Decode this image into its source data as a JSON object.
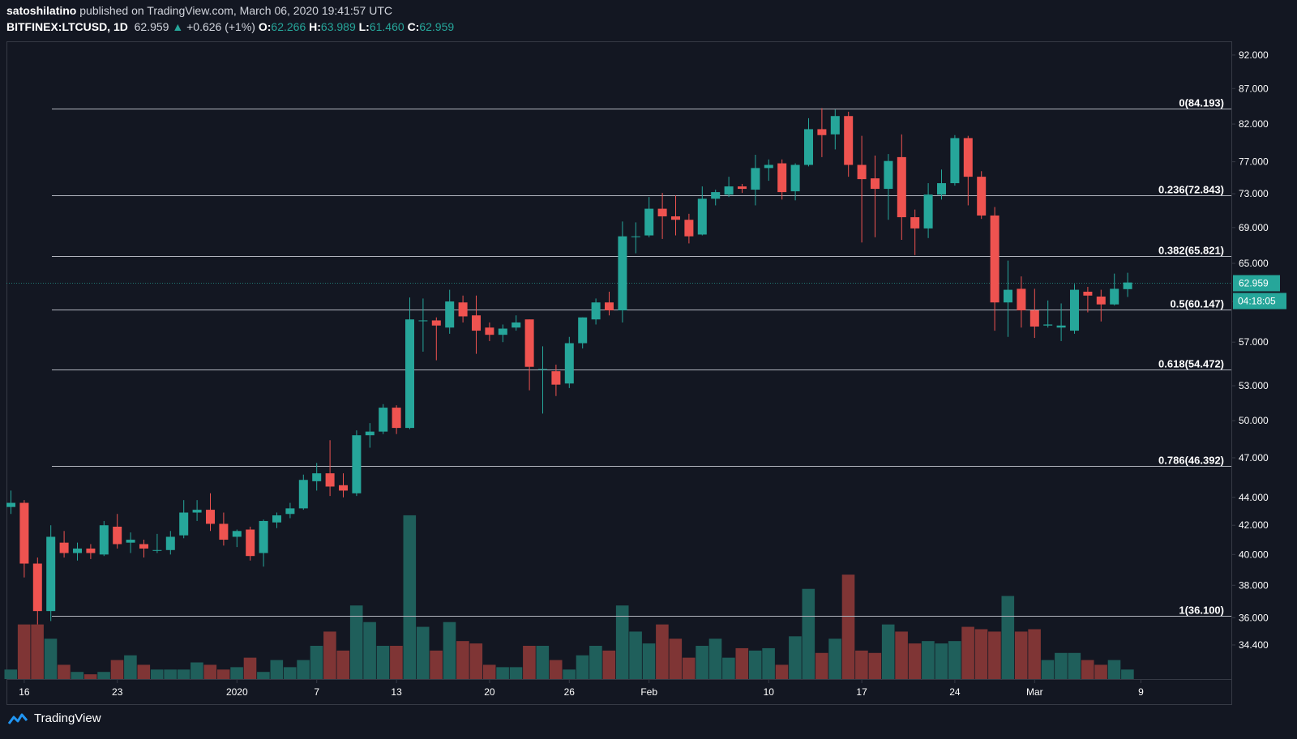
{
  "header": {
    "author": "satoshilatino",
    "published": "published on TradingView.com, March 06, 2020 19:41:57 UTC",
    "symbol": "BITFINEX:LTCUSD, 1D",
    "last": "62.959",
    "arrow": "▲",
    "change": "+0.626 (+1%)",
    "o_label": "O:",
    "o": "62.266",
    "h_label": "H:",
    "h": "63.989",
    "l_label": "L:",
    "l": "61.460",
    "c_label": "C:",
    "c": "62.959"
  },
  "footer": {
    "brand": "TradingView"
  },
  "colors": {
    "background": "#131722",
    "up": "#26a69a",
    "down": "#ef5350",
    "vol_up": "#1f5f5b",
    "vol_down": "#7f3535",
    "fib_line": "#b2b5be",
    "price_tag": "#26a69a"
  },
  "chart_data": {
    "type": "candlestick",
    "y_scale": "log",
    "ylim": [
      32.5,
      94.0
    ],
    "y_ticks": [
      "92.000",
      "87.000",
      "82.000",
      "77.000",
      "73.000",
      "69.000",
      "65.000",
      "61.000",
      "57.000",
      "53.000",
      "50.000",
      "47.000",
      "44.000",
      "42.000",
      "40.000",
      "38.000",
      "36.000",
      "34.400"
    ],
    "x_ticks": [
      {
        "label": "16",
        "index": 1
      },
      {
        "label": "23",
        "index": 8
      },
      {
        "label": "2020",
        "index": 17
      },
      {
        "label": "7",
        "index": 23
      },
      {
        "label": "13",
        "index": 29
      },
      {
        "label": "20",
        "index": 36
      },
      {
        "label": "26",
        "index": 42
      },
      {
        "label": "Feb",
        "index": 48
      },
      {
        "label": "10",
        "index": 57
      },
      {
        "label": "17",
        "index": 64
      },
      {
        "label": "24",
        "index": 71
      },
      {
        "label": "Mar",
        "index": 77
      },
      {
        "label": "9",
        "index": 85
      }
    ],
    "fib_levels": [
      {
        "label": "0(84.193)",
        "value": 84.193
      },
      {
        "label": "0.236(72.843)",
        "value": 72.843
      },
      {
        "label": "0.382(65.821)",
        "value": 65.821
      },
      {
        "label": "0.5(60.147)",
        "value": 60.147
      },
      {
        "label": "0.618(54.472)",
        "value": 54.472
      },
      {
        "label": "0.786(46.392)",
        "value": 46.392
      },
      {
        "label": "1(36.100)",
        "value": 36.1
      }
    ],
    "last_price": "62.959",
    "countdown": "04:18:05",
    "candles": [
      {
        "o": 43.3,
        "h": 44.5,
        "l": 42.8,
        "c": 43.6
      },
      {
        "o": 43.6,
        "h": 43.8,
        "l": 38.5,
        "c": 39.4
      },
      {
        "o": 39.4,
        "h": 39.8,
        "l": 35.6,
        "c": 36.4
      },
      {
        "o": 36.4,
        "h": 42.0,
        "l": 35.8,
        "c": 41.2
      },
      {
        "o": 40.8,
        "h": 41.6,
        "l": 39.8,
        "c": 40.1
      },
      {
        "o": 40.1,
        "h": 40.8,
        "l": 39.6,
        "c": 40.4
      },
      {
        "o": 40.4,
        "h": 40.7,
        "l": 39.7,
        "c": 40.1
      },
      {
        "o": 40.0,
        "h": 42.3,
        "l": 39.9,
        "c": 42.0
      },
      {
        "o": 41.9,
        "h": 42.8,
        "l": 40.4,
        "c": 40.7
      },
      {
        "o": 40.8,
        "h": 41.5,
        "l": 40.1,
        "c": 41.0
      },
      {
        "o": 40.7,
        "h": 41.0,
        "l": 39.8,
        "c": 40.4
      },
      {
        "o": 40.3,
        "h": 41.4,
        "l": 40.1,
        "c": 40.3
      },
      {
        "o": 40.3,
        "h": 41.6,
        "l": 40.0,
        "c": 41.2
      },
      {
        "o": 41.3,
        "h": 43.8,
        "l": 41.1,
        "c": 42.9
      },
      {
        "o": 42.9,
        "h": 43.8,
        "l": 42.3,
        "c": 43.1
      },
      {
        "o": 43.1,
        "h": 44.3,
        "l": 41.6,
        "c": 42.1
      },
      {
        "o": 42.1,
        "h": 42.9,
        "l": 40.6,
        "c": 41.0
      },
      {
        "o": 41.2,
        "h": 41.7,
        "l": 40.5,
        "c": 41.6
      },
      {
        "o": 41.7,
        "h": 41.9,
        "l": 39.6,
        "c": 39.9
      },
      {
        "o": 40.1,
        "h": 42.4,
        "l": 39.2,
        "c": 42.3
      },
      {
        "o": 42.2,
        "h": 42.9,
        "l": 41.8,
        "c": 42.7
      },
      {
        "o": 42.8,
        "h": 43.6,
        "l": 42.5,
        "c": 43.2
      },
      {
        "o": 43.2,
        "h": 45.7,
        "l": 43.1,
        "c": 45.3
      },
      {
        "o": 45.2,
        "h": 46.6,
        "l": 44.5,
        "c": 45.8
      },
      {
        "o": 45.8,
        "h": 48.4,
        "l": 44.1,
        "c": 44.8
      },
      {
        "o": 44.9,
        "h": 45.8,
        "l": 44.0,
        "c": 44.5
      },
      {
        "o": 44.3,
        "h": 49.2,
        "l": 44.1,
        "c": 48.8
      },
      {
        "o": 48.8,
        "h": 49.8,
        "l": 47.8,
        "c": 49.1
      },
      {
        "o": 49.1,
        "h": 51.4,
        "l": 48.9,
        "c": 51.1
      },
      {
        "o": 51.1,
        "h": 51.3,
        "l": 48.9,
        "c": 49.4
      },
      {
        "o": 49.4,
        "h": 61.4,
        "l": 49.3,
        "c": 59.2
      },
      {
        "o": 59.1,
        "h": 61.3,
        "l": 56.1,
        "c": 59.1
      },
      {
        "o": 59.1,
        "h": 59.4,
        "l": 55.3,
        "c": 58.6
      },
      {
        "o": 58.4,
        "h": 62.2,
        "l": 57.8,
        "c": 61.0
      },
      {
        "o": 60.9,
        "h": 61.6,
        "l": 58.9,
        "c": 59.5
      },
      {
        "o": 59.6,
        "h": 61.6,
        "l": 55.9,
        "c": 58.1
      },
      {
        "o": 58.4,
        "h": 58.9,
        "l": 57.1,
        "c": 57.7
      },
      {
        "o": 57.7,
        "h": 58.7,
        "l": 57.0,
        "c": 58.3
      },
      {
        "o": 58.4,
        "h": 59.6,
        "l": 58.1,
        "c": 58.9
      },
      {
        "o": 59.2,
        "h": 59.2,
        "l": 52.6,
        "c": 54.7
      },
      {
        "o": 54.5,
        "h": 56.6,
        "l": 50.6,
        "c": 54.5
      },
      {
        "o": 54.3,
        "h": 54.9,
        "l": 52.1,
        "c": 53.1
      },
      {
        "o": 53.2,
        "h": 57.5,
        "l": 52.8,
        "c": 56.9
      },
      {
        "o": 56.9,
        "h": 59.4,
        "l": 56.4,
        "c": 59.4
      },
      {
        "o": 59.2,
        "h": 61.3,
        "l": 58.7,
        "c": 60.9
      },
      {
        "o": 60.9,
        "h": 62.0,
        "l": 59.6,
        "c": 60.1
      },
      {
        "o": 60.1,
        "h": 69.7,
        "l": 58.9,
        "c": 68.0
      },
      {
        "o": 68.0,
        "h": 69.6,
        "l": 66.1,
        "c": 68.0
      },
      {
        "o": 68.1,
        "h": 72.6,
        "l": 67.9,
        "c": 71.2
      },
      {
        "o": 71.2,
        "h": 73.1,
        "l": 67.7,
        "c": 70.3
      },
      {
        "o": 70.3,
        "h": 72.8,
        "l": 68.1,
        "c": 69.9
      },
      {
        "o": 69.9,
        "h": 70.6,
        "l": 67.2,
        "c": 68.0
      },
      {
        "o": 68.2,
        "h": 73.9,
        "l": 68.1,
        "c": 72.4
      },
      {
        "o": 72.4,
        "h": 73.5,
        "l": 71.6,
        "c": 73.2
      },
      {
        "o": 72.9,
        "h": 75.1,
        "l": 72.6,
        "c": 73.9
      },
      {
        "o": 73.9,
        "h": 74.2,
        "l": 73.1,
        "c": 73.6
      },
      {
        "o": 73.5,
        "h": 77.9,
        "l": 71.6,
        "c": 76.2
      },
      {
        "o": 76.2,
        "h": 77.3,
        "l": 74.6,
        "c": 76.6
      },
      {
        "o": 76.8,
        "h": 77.3,
        "l": 72.3,
        "c": 73.2
      },
      {
        "o": 73.3,
        "h": 76.8,
        "l": 72.2,
        "c": 76.6
      },
      {
        "o": 76.6,
        "h": 82.8,
        "l": 76.4,
        "c": 81.3
      },
      {
        "o": 81.3,
        "h": 84.2,
        "l": 77.6,
        "c": 80.5
      },
      {
        "o": 80.6,
        "h": 84.0,
        "l": 78.6,
        "c": 83.1
      },
      {
        "o": 83.1,
        "h": 83.7,
        "l": 75.1,
        "c": 76.6
      },
      {
        "o": 76.6,
        "h": 80.4,
        "l": 67.3,
        "c": 74.8
      },
      {
        "o": 74.9,
        "h": 77.8,
        "l": 67.9,
        "c": 73.6
      },
      {
        "o": 73.6,
        "h": 78.0,
        "l": 69.9,
        "c": 77.1
      },
      {
        "o": 77.6,
        "h": 80.6,
        "l": 67.6,
        "c": 70.2
      },
      {
        "o": 70.2,
        "h": 71.1,
        "l": 65.9,
        "c": 68.9
      },
      {
        "o": 68.9,
        "h": 74.3,
        "l": 67.8,
        "c": 72.9
      },
      {
        "o": 72.9,
        "h": 76.0,
        "l": 72.3,
        "c": 74.3
      },
      {
        "o": 74.3,
        "h": 80.5,
        "l": 74.0,
        "c": 80.1
      },
      {
        "o": 80.1,
        "h": 80.4,
        "l": 71.6,
        "c": 75.1
      },
      {
        "o": 75.1,
        "h": 75.8,
        "l": 70.0,
        "c": 70.4
      },
      {
        "o": 70.4,
        "h": 71.4,
        "l": 58.1,
        "c": 60.9
      },
      {
        "o": 60.9,
        "h": 65.3,
        "l": 57.5,
        "c": 62.2
      },
      {
        "o": 62.3,
        "h": 63.6,
        "l": 58.4,
        "c": 60.1
      },
      {
        "o": 60.1,
        "h": 62.3,
        "l": 57.4,
        "c": 58.5
      },
      {
        "o": 58.6,
        "h": 61.1,
        "l": 58.4,
        "c": 58.7
      },
      {
        "o": 58.4,
        "h": 60.8,
        "l": 57.1,
        "c": 58.6
      },
      {
        "o": 58.1,
        "h": 62.8,
        "l": 57.8,
        "c": 62.2
      },
      {
        "o": 62.0,
        "h": 62.5,
        "l": 59.9,
        "c": 61.6
      },
      {
        "o": 61.5,
        "h": 62.2,
        "l": 59.0,
        "c": 60.7
      },
      {
        "o": 60.7,
        "h": 63.9,
        "l": 60.6,
        "c": 62.3
      },
      {
        "o": 62.266,
        "h": 63.989,
        "l": 61.46,
        "c": 62.959
      }
    ],
    "volume": [
      4,
      23,
      23,
      17,
      6,
      3,
      2,
      3,
      8,
      10,
      6,
      4,
      4,
      4,
      7,
      6,
      4,
      5,
      9,
      3,
      8,
      5,
      8,
      14,
      20,
      12,
      31,
      24,
      14,
      14,
      69,
      22,
      12,
      24,
      16,
      15,
      6,
      5,
      5,
      14,
      14,
      8,
      4,
      10,
      14,
      12,
      31,
      20,
      15,
      23,
      17,
      9,
      14,
      17,
      9,
      13,
      12,
      13,
      6,
      18,
      38,
      11,
      17,
      44,
      12,
      11,
      23,
      20,
      15,
      16,
      15,
      16,
      22,
      21,
      20,
      35,
      20,
      21,
      8,
      11,
      11,
      8,
      6,
      8,
      4
    ]
  }
}
